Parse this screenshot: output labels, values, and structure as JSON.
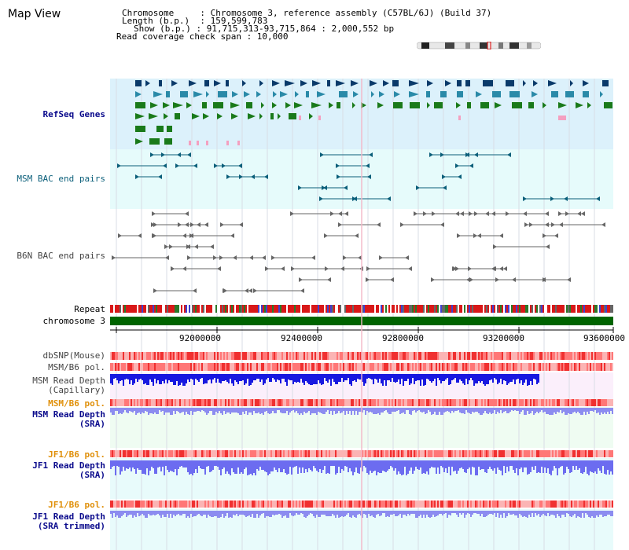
{
  "header": {
    "title": "Map View",
    "chromosome_line": "Chromosome     : Chromosome 3, reference assembly (C57BL/6J) (Build 37)",
    "length_line": "Length (b.p.)  : 159,599,783",
    "show_line": "Show (b.p.) : 91,715,313-93,715,864 : 2,000,552 bp",
    "span_line": "Read coverage check span : 10,000"
  },
  "tracks": {
    "refseq": "RefSeq Genes",
    "msm_bac": "MSM BAC end pairs",
    "b6n_bac": "B6N BAC end pairs",
    "repeat": "Repeat",
    "chromosome": "chromosome 3",
    "dbsnp": "dbSNP(Mouse)",
    "msm_b6_pol_1": "MSM/B6 pol.",
    "msm_depth_cap_1": "MSM Read Depth",
    "msm_depth_cap_2": "(Capillary)",
    "msm_b6_pol_2": "MSM/B6 pol.",
    "msm_depth_sra_1": "MSM Read Depth",
    "msm_depth_sra_2": "(SRA)",
    "jf1_b6_pol_1": "JF1/B6 pol.",
    "jf1_depth_sra_1": "JF1 Read Depth",
    "jf1_depth_sra_2": "(SRA)",
    "jf1_b6_pol_2": "JF1/B6 pol.",
    "jf1_depth_trim_1": "JF1 Read Depth",
    "jf1_depth_trim_2": "(SRA trimmed)"
  },
  "ruler": {
    "ticks": [
      "92000000",
      "92400000",
      "92800000",
      "93200000",
      "93600000"
    ]
  },
  "colors": {
    "refseq_bg": "#dcf1fb",
    "msm_bac_bg": "#e6fbfb",
    "gene_navy": "#0a3a6a",
    "gene_teal": "#2a8aa8",
    "gene_green": "#1a7a1a",
    "chromosome_bar": "#006400",
    "depth_blue": "#1818e0",
    "depth_light": "#8c8cf0",
    "pol_red": "#f03030",
    "pol_pink": "#fbb4b4"
  }
}
